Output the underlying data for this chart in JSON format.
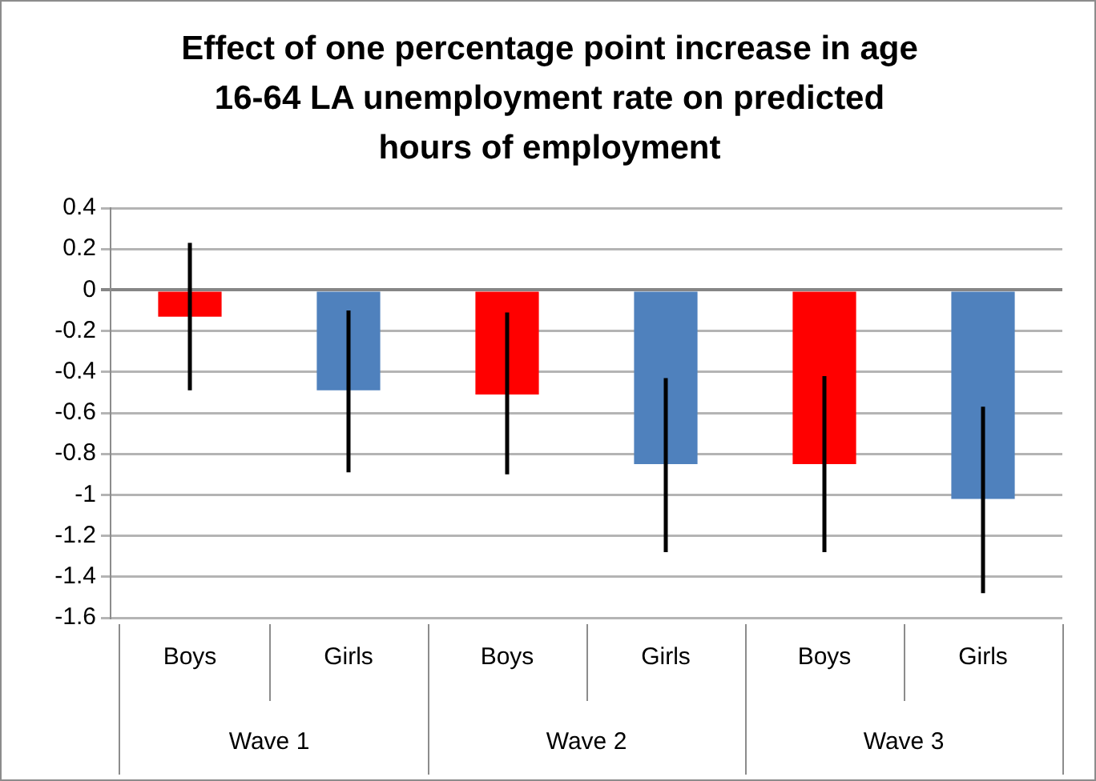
{
  "chart_data": {
    "type": "bar",
    "title": "Effect of one percentage point increase in age 16-64 LA unemployment rate on predicted hours of employment",
    "categories": [
      "Boys",
      "Girls",
      "Boys",
      "Girls",
      "Boys",
      "Girls"
    ],
    "values": [
      -0.13,
      -0.49,
      -0.51,
      -0.85,
      -0.85,
      -1.02
    ],
    "colors": [
      "#ff0000",
      "#4f81bd",
      "#ff0000",
      "#4f81bd",
      "#ff0000",
      "#4f81bd"
    ],
    "errors": [
      [
        -0.49,
        0.23
      ],
      [
        -0.89,
        -0.1
      ],
      [
        -0.9,
        -0.11
      ],
      [
        -1.28,
        -0.43
      ],
      [
        -1.28,
        -0.42
      ],
      [
        -1.48,
        -0.57
      ]
    ],
    "annotations": [
      "Wave 1",
      "Wave 2",
      "Wave 3"
    ],
    "ylim": [
      -1.6,
      0.4
    ],
    "yticks": [
      -1.6,
      -1.4,
      -1.2,
      -1,
      -0.8,
      -0.6,
      -0.4,
      -0.2,
      0,
      0.2,
      0.4
    ],
    "grid": "y",
    "legend": false
  }
}
